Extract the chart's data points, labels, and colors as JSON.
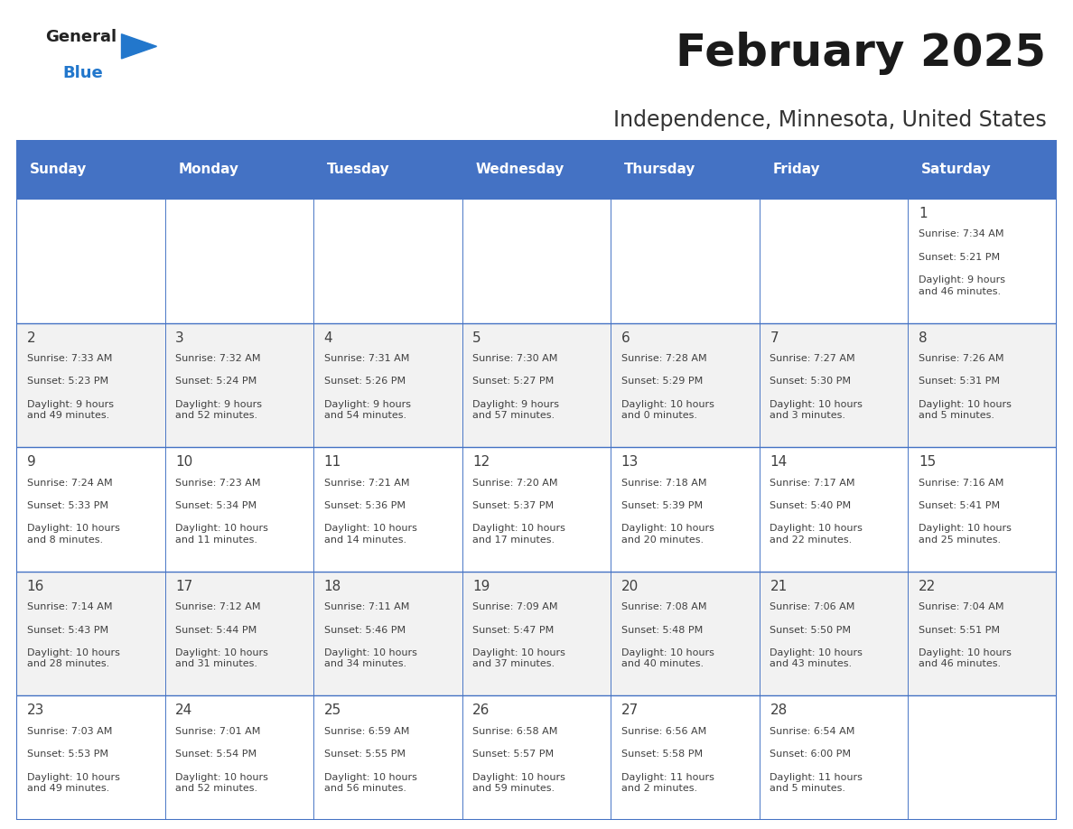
{
  "title": "February 2025",
  "subtitle": "Independence, Minnesota, United States",
  "header_color": "#4472C4",
  "header_text_color": "#FFFFFF",
  "border_color": "#4472C4",
  "text_color": "#404040",
  "days_of_week": [
    "Sunday",
    "Monday",
    "Tuesday",
    "Wednesday",
    "Thursday",
    "Friday",
    "Saturday"
  ],
  "row_bg_colors": [
    "#FFFFFF",
    "#F2F2F2",
    "#FFFFFF",
    "#F2F2F2",
    "#FFFFFF"
  ],
  "calendar_data": [
    [
      null,
      null,
      null,
      null,
      null,
      null,
      {
        "day": "1",
        "sunrise": "Sunrise: 7:34 AM",
        "sunset": "Sunset: 5:21 PM",
        "daylight": "Daylight: 9 hours\nand 46 minutes."
      }
    ],
    [
      {
        "day": "2",
        "sunrise": "Sunrise: 7:33 AM",
        "sunset": "Sunset: 5:23 PM",
        "daylight": "Daylight: 9 hours\nand 49 minutes."
      },
      {
        "day": "3",
        "sunrise": "Sunrise: 7:32 AM",
        "sunset": "Sunset: 5:24 PM",
        "daylight": "Daylight: 9 hours\nand 52 minutes."
      },
      {
        "day": "4",
        "sunrise": "Sunrise: 7:31 AM",
        "sunset": "Sunset: 5:26 PM",
        "daylight": "Daylight: 9 hours\nand 54 minutes."
      },
      {
        "day": "5",
        "sunrise": "Sunrise: 7:30 AM",
        "sunset": "Sunset: 5:27 PM",
        "daylight": "Daylight: 9 hours\nand 57 minutes."
      },
      {
        "day": "6",
        "sunrise": "Sunrise: 7:28 AM",
        "sunset": "Sunset: 5:29 PM",
        "daylight": "Daylight: 10 hours\nand 0 minutes."
      },
      {
        "day": "7",
        "sunrise": "Sunrise: 7:27 AM",
        "sunset": "Sunset: 5:30 PM",
        "daylight": "Daylight: 10 hours\nand 3 minutes."
      },
      {
        "day": "8",
        "sunrise": "Sunrise: 7:26 AM",
        "sunset": "Sunset: 5:31 PM",
        "daylight": "Daylight: 10 hours\nand 5 minutes."
      }
    ],
    [
      {
        "day": "9",
        "sunrise": "Sunrise: 7:24 AM",
        "sunset": "Sunset: 5:33 PM",
        "daylight": "Daylight: 10 hours\nand 8 minutes."
      },
      {
        "day": "10",
        "sunrise": "Sunrise: 7:23 AM",
        "sunset": "Sunset: 5:34 PM",
        "daylight": "Daylight: 10 hours\nand 11 minutes."
      },
      {
        "day": "11",
        "sunrise": "Sunrise: 7:21 AM",
        "sunset": "Sunset: 5:36 PM",
        "daylight": "Daylight: 10 hours\nand 14 minutes."
      },
      {
        "day": "12",
        "sunrise": "Sunrise: 7:20 AM",
        "sunset": "Sunset: 5:37 PM",
        "daylight": "Daylight: 10 hours\nand 17 minutes."
      },
      {
        "day": "13",
        "sunrise": "Sunrise: 7:18 AM",
        "sunset": "Sunset: 5:39 PM",
        "daylight": "Daylight: 10 hours\nand 20 minutes."
      },
      {
        "day": "14",
        "sunrise": "Sunrise: 7:17 AM",
        "sunset": "Sunset: 5:40 PM",
        "daylight": "Daylight: 10 hours\nand 22 minutes."
      },
      {
        "day": "15",
        "sunrise": "Sunrise: 7:16 AM",
        "sunset": "Sunset: 5:41 PM",
        "daylight": "Daylight: 10 hours\nand 25 minutes."
      }
    ],
    [
      {
        "day": "16",
        "sunrise": "Sunrise: 7:14 AM",
        "sunset": "Sunset: 5:43 PM",
        "daylight": "Daylight: 10 hours\nand 28 minutes."
      },
      {
        "day": "17",
        "sunrise": "Sunrise: 7:12 AM",
        "sunset": "Sunset: 5:44 PM",
        "daylight": "Daylight: 10 hours\nand 31 minutes."
      },
      {
        "day": "18",
        "sunrise": "Sunrise: 7:11 AM",
        "sunset": "Sunset: 5:46 PM",
        "daylight": "Daylight: 10 hours\nand 34 minutes."
      },
      {
        "day": "19",
        "sunrise": "Sunrise: 7:09 AM",
        "sunset": "Sunset: 5:47 PM",
        "daylight": "Daylight: 10 hours\nand 37 minutes."
      },
      {
        "day": "20",
        "sunrise": "Sunrise: 7:08 AM",
        "sunset": "Sunset: 5:48 PM",
        "daylight": "Daylight: 10 hours\nand 40 minutes."
      },
      {
        "day": "21",
        "sunrise": "Sunrise: 7:06 AM",
        "sunset": "Sunset: 5:50 PM",
        "daylight": "Daylight: 10 hours\nand 43 minutes."
      },
      {
        "day": "22",
        "sunrise": "Sunrise: 7:04 AM",
        "sunset": "Sunset: 5:51 PM",
        "daylight": "Daylight: 10 hours\nand 46 minutes."
      }
    ],
    [
      {
        "day": "23",
        "sunrise": "Sunrise: 7:03 AM",
        "sunset": "Sunset: 5:53 PM",
        "daylight": "Daylight: 10 hours\nand 49 minutes."
      },
      {
        "day": "24",
        "sunrise": "Sunrise: 7:01 AM",
        "sunset": "Sunset: 5:54 PM",
        "daylight": "Daylight: 10 hours\nand 52 minutes."
      },
      {
        "day": "25",
        "sunrise": "Sunrise: 6:59 AM",
        "sunset": "Sunset: 5:55 PM",
        "daylight": "Daylight: 10 hours\nand 56 minutes."
      },
      {
        "day": "26",
        "sunrise": "Sunrise: 6:58 AM",
        "sunset": "Sunset: 5:57 PM",
        "daylight": "Daylight: 10 hours\nand 59 minutes."
      },
      {
        "day": "27",
        "sunrise": "Sunrise: 6:56 AM",
        "sunset": "Sunset: 5:58 PM",
        "daylight": "Daylight: 11 hours\nand 2 minutes."
      },
      {
        "day": "28",
        "sunrise": "Sunrise: 6:54 AM",
        "sunset": "Sunset: 6:00 PM",
        "daylight": "Daylight: 11 hours\nand 5 minutes."
      },
      null
    ]
  ],
  "logo_general_color": "#222222",
  "logo_blue_color": "#2277CC",
  "logo_triangle_color": "#2277CC",
  "title_color": "#1a1a1a",
  "subtitle_color": "#333333",
  "title_fontsize": 36,
  "subtitle_fontsize": 17,
  "header_fontsize": 11,
  "day_num_fontsize": 11,
  "cell_text_fontsize": 8
}
